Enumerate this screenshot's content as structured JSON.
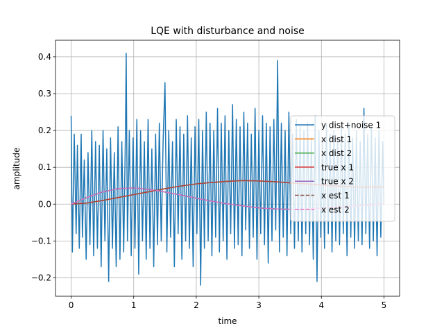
{
  "chart_data": {
    "type": "line",
    "title": "LQE with disturbance and noise",
    "xlabel": "time",
    "ylabel": "amplitude",
    "xlim": [
      -0.25,
      5.25
    ],
    "ylim": [
      -0.25,
      0.445
    ],
    "xticks": [
      0,
      1,
      2,
      3,
      4,
      5
    ],
    "xtick_labels": [
      "0",
      "1",
      "2",
      "3",
      "4",
      "5"
    ],
    "yticks": [
      -0.2,
      -0.1,
      0.0,
      0.1,
      0.2,
      0.3,
      0.4
    ],
    "ytick_labels": [
      "−0.2",
      "−0.1",
      "0.0",
      "0.1",
      "0.2",
      "0.3",
      "0.4"
    ],
    "grid": true,
    "legend_position": "center-right",
    "colors": {
      "tab_blue": "#1f77b4",
      "tab_orange": "#ff7f0e",
      "tab_green": "#2ca02c",
      "tab_red": "#d62728",
      "tab_purple": "#9467bd",
      "tab_brown": "#8c564b",
      "tab_pink": "#e377c2"
    },
    "x": [
      0.0,
      0.25,
      0.5,
      0.75,
      1.0,
      1.25,
      1.5,
      1.75,
      2.0,
      2.25,
      2.5,
      2.75,
      3.0,
      3.25,
      3.5,
      3.75,
      4.0,
      4.25,
      4.5,
      4.75,
      5.0
    ],
    "series": [
      {
        "name": "y dist+noise 1",
        "color": "#1f77b4",
        "style": "solid",
        "x": [
          0.0,
          0.02,
          0.05,
          0.08,
          0.1,
          0.13,
          0.16,
          0.18,
          0.21,
          0.24,
          0.27,
          0.3,
          0.33,
          0.36,
          0.39,
          0.42,
          0.45,
          0.48,
          0.51,
          0.54,
          0.57,
          0.6,
          0.63,
          0.66,
          0.69,
          0.72,
          0.75,
          0.78,
          0.81,
          0.84,
          0.87,
          0.88,
          0.9,
          0.93,
          0.96,
          0.99,
          1.02,
          1.05,
          1.08,
          1.11,
          1.14,
          1.17,
          1.2,
          1.23,
          1.26,
          1.29,
          1.32,
          1.35,
          1.38,
          1.41,
          1.44,
          1.47,
          1.5,
          1.53,
          1.56,
          1.59,
          1.62,
          1.65,
          1.68,
          1.71,
          1.74,
          1.77,
          1.8,
          1.83,
          1.86,
          1.89,
          1.92,
          1.95,
          1.98,
          2.01,
          2.04,
          2.07,
          2.1,
          2.13,
          2.16,
          2.19,
          2.22,
          2.25,
          2.28,
          2.31,
          2.34,
          2.37,
          2.4,
          2.43,
          2.46,
          2.49,
          2.52,
          2.55,
          2.58,
          2.61,
          2.64,
          2.67,
          2.7,
          2.73,
          2.76,
          2.79,
          2.82,
          2.85,
          2.88,
          2.91,
          2.94,
          2.97,
          3.0,
          3.03,
          3.06,
          3.09,
          3.12,
          3.15,
          3.18,
          3.21,
          3.24,
          3.27,
          3.3,
          3.33,
          3.36,
          3.39,
          3.42,
          3.45,
          3.48,
          3.51,
          3.54,
          3.57,
          3.6,
          3.63,
          3.66,
          3.69,
          3.72,
          3.75,
          3.78,
          3.81,
          3.84,
          3.87,
          3.9,
          3.93,
          3.96,
          3.99,
          4.02,
          4.05,
          4.08,
          4.11,
          4.14,
          4.17,
          4.2,
          4.23,
          4.26,
          4.29,
          4.32,
          4.35,
          4.38,
          4.41,
          4.44,
          4.47,
          4.5,
          4.53,
          4.56,
          4.59,
          4.62,
          4.65,
          4.68,
          4.71,
          4.74,
          4.77,
          4.8,
          4.83,
          4.86,
          4.89,
          4.92,
          4.95,
          4.98,
          5.0
        ],
        "values": [
          0.24,
          -0.13,
          0.19,
          -0.08,
          0.16,
          -0.12,
          0.19,
          -0.09,
          0.12,
          -0.15,
          0.14,
          -0.11,
          0.2,
          -0.14,
          0.17,
          -0.12,
          0.16,
          -0.17,
          0.2,
          -0.1,
          0.15,
          -0.21,
          0.18,
          -0.12,
          0.14,
          -0.17,
          0.21,
          -0.15,
          0.17,
          -0.13,
          0.22,
          0.41,
          -0.1,
          0.2,
          -0.14,
          0.18,
          -0.12,
          0.23,
          -0.19,
          0.2,
          -0.1,
          0.17,
          -0.15,
          0.23,
          -0.12,
          0.15,
          -0.17,
          0.19,
          -0.11,
          0.22,
          -0.1,
          0.17,
          0.33,
          -0.13,
          0.2,
          -0.09,
          0.17,
          -0.17,
          0.23,
          -0.08,
          0.21,
          -0.15,
          0.19,
          -0.1,
          0.24,
          -0.12,
          0.18,
          -0.17,
          0.21,
          -0.08,
          0.23,
          -0.22,
          0.2,
          -0.12,
          0.25,
          -0.1,
          0.22,
          -0.14,
          0.2,
          -0.09,
          0.26,
          -0.13,
          0.22,
          -0.1,
          0.24,
          -0.15,
          0.2,
          -0.08,
          0.27,
          -0.12,
          0.23,
          -0.11,
          0.21,
          -0.14,
          0.25,
          -0.07,
          0.22,
          -0.12,
          0.19,
          -0.09,
          0.26,
          -0.15,
          0.2,
          -0.08,
          0.24,
          -0.11,
          0.22,
          -0.16,
          0.21,
          -0.1,
          0.23,
          -0.07,
          0.39,
          -0.13,
          0.22,
          -0.09,
          0.2,
          -0.14,
          0.25,
          -0.08,
          0.19,
          -0.12,
          0.23,
          -0.1,
          0.21,
          -0.13,
          0.2,
          -0.08,
          0.22,
          -0.11,
          0.18,
          -0.15,
          0.24,
          -0.21,
          0.2,
          -0.09,
          0.17,
          -0.12,
          0.22,
          -0.08,
          0.19,
          -0.13,
          0.2,
          -0.1,
          0.18,
          -0.11,
          0.21,
          -0.08,
          0.19,
          -0.14,
          0.22,
          -0.09,
          0.18,
          -0.12,
          0.2,
          -0.1,
          0.17,
          -0.11,
          0.26,
          -0.08,
          0.19,
          -0.12,
          0.21,
          -0.1,
          0.18,
          -0.14,
          0.2,
          -0.09,
          0.17,
          0.0
        ]
      },
      {
        "name": "x dist 1",
        "color": "#ff7f0e",
        "style": "solid",
        "values": [
          0.0,
          0.003,
          0.01,
          0.018,
          0.026,
          0.034,
          0.042,
          0.049,
          0.055,
          0.059,
          0.062,
          0.064,
          0.063,
          0.061,
          0.058,
          0.055,
          0.052,
          0.049,
          0.047,
          0.046,
          0.047
        ]
      },
      {
        "name": "x dist 2",
        "color": "#2ca02c",
        "style": "solid",
        "values": [
          0.0,
          0.018,
          0.033,
          0.042,
          0.044,
          0.04,
          0.033,
          0.025,
          0.016,
          0.008,
          0.001,
          -0.005,
          -0.01,
          -0.013,
          -0.014,
          -0.013,
          -0.011,
          -0.008,
          -0.005,
          -0.002,
          0.001
        ]
      },
      {
        "name": "true x 1",
        "color": "#d62728",
        "style": "solid",
        "values": [
          0.0,
          0.003,
          0.01,
          0.018,
          0.026,
          0.034,
          0.042,
          0.049,
          0.055,
          0.059,
          0.062,
          0.064,
          0.063,
          0.061,
          0.058,
          0.055,
          0.052,
          0.049,
          0.047,
          0.046,
          0.047
        ]
      },
      {
        "name": "true x 2",
        "color": "#9467bd",
        "style": "solid",
        "values": [
          0.0,
          0.018,
          0.033,
          0.042,
          0.044,
          0.04,
          0.033,
          0.025,
          0.016,
          0.008,
          0.001,
          -0.005,
          -0.01,
          -0.013,
          -0.014,
          -0.013,
          -0.011,
          -0.008,
          -0.005,
          -0.002,
          0.001
        ]
      },
      {
        "name": "x est 1",
        "color": "#8c564b",
        "style": "dashed",
        "values": [
          0.0,
          0.003,
          0.01,
          0.018,
          0.026,
          0.034,
          0.042,
          0.049,
          0.055,
          0.059,
          0.062,
          0.064,
          0.063,
          0.061,
          0.058,
          0.055,
          0.052,
          0.049,
          0.047,
          0.046,
          0.047
        ]
      },
      {
        "name": "x est 2",
        "color": "#e377c2",
        "style": "dashed",
        "values": [
          0.0,
          0.018,
          0.033,
          0.042,
          0.044,
          0.04,
          0.033,
          0.025,
          0.016,
          0.008,
          0.001,
          -0.005,
          -0.01,
          -0.013,
          -0.014,
          -0.013,
          -0.011,
          -0.008,
          -0.005,
          -0.002,
          0.001
        ]
      }
    ]
  }
}
